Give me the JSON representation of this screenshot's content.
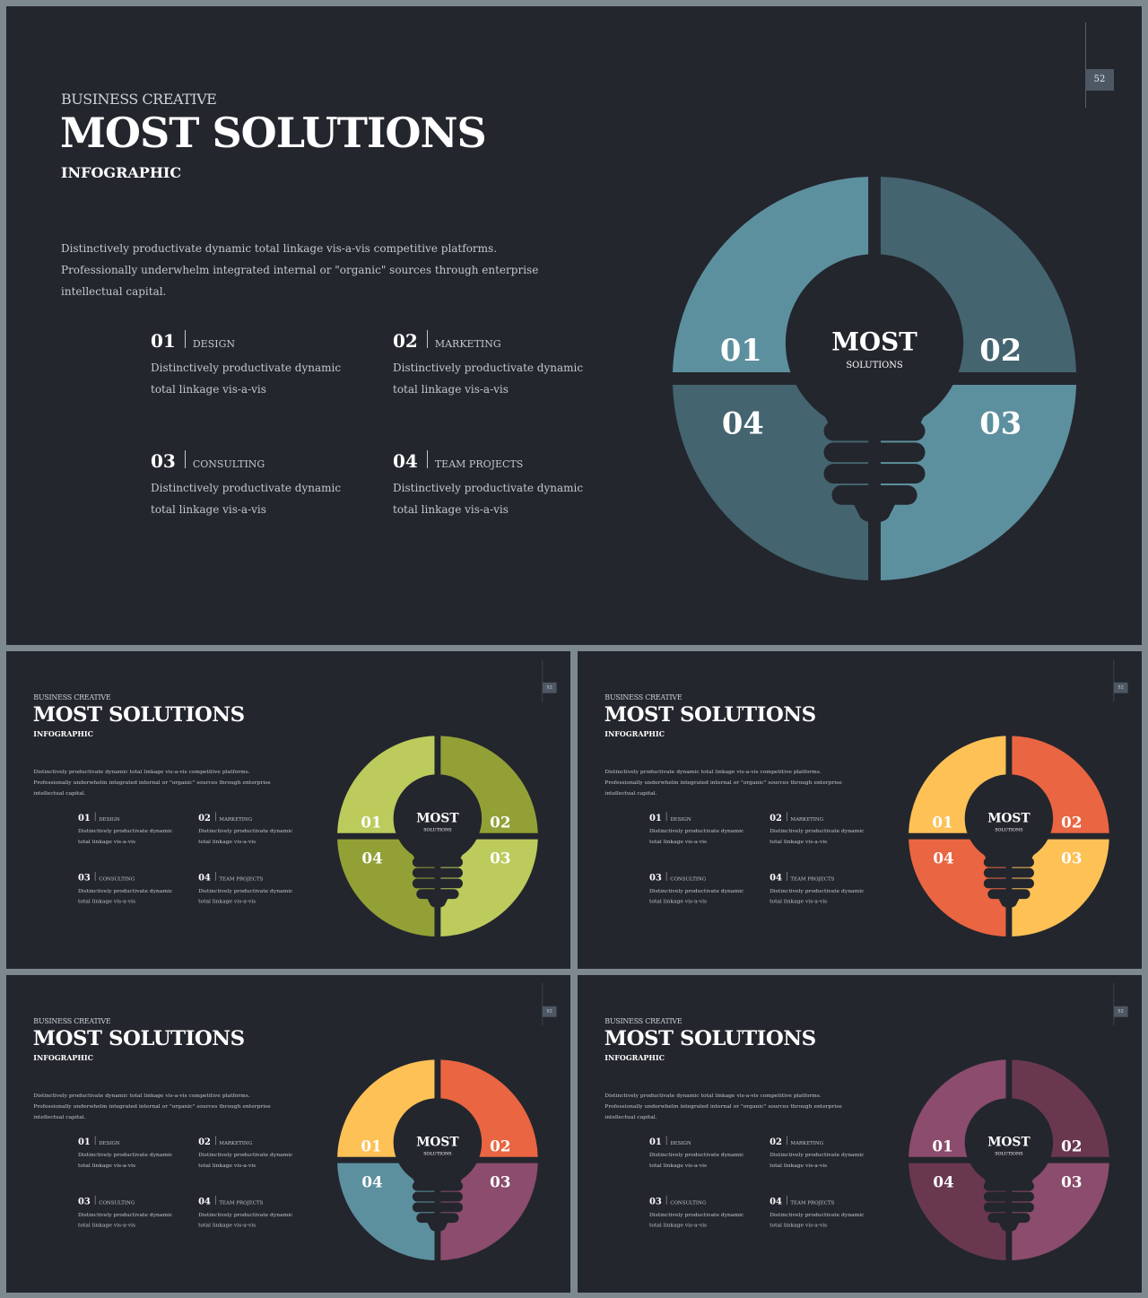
{
  "page_number": "52",
  "pre_title": "BUSINESS CREATIVE",
  "title": "MOST SOLUTIONS",
  "subtitle": "INFOGRAPHIC",
  "description": "Distinctively productivate dynamic total linkage vis-a-vis competitive platforms. Professionally underwhelm integrated internal or \"organic\" sources through enterprise intellectual capital.",
  "items": [
    {
      "num": "01",
      "label": "DESIGN",
      "text": "Distinctively productivate dynamic total linkage vis-a-vis"
    },
    {
      "num": "02",
      "label": "MARKETING",
      "text": "Distinctively productivate dynamic total linkage vis-a-vis"
    },
    {
      "num": "03",
      "label": "CONSULTING",
      "text": "Distinctively productivate dynamic total linkage vis-a-vis"
    },
    {
      "num": "04",
      "label": "TEAM PROJECTS",
      "text": "Distinctively productivate dynamic total linkage vis-a-vis"
    }
  ],
  "bulb": {
    "title": "MOST",
    "subtitle": "SOLUTIONS"
  },
  "icon": "lightbulb-icon",
  "background_color": "#23262d",
  "variants": [
    {
      "name": "teal",
      "colors": {
        "q1": "#5d909f",
        "q2": "#44646f",
        "q3": "#5d909f",
        "q4": "#44646f"
      }
    },
    {
      "name": "green",
      "colors": {
        "q1": "#bccb5c",
        "q2": "#93a036",
        "q3": "#bccb5c",
        "q4": "#93a036"
      }
    },
    {
      "name": "orange",
      "colors": {
        "q1": "#fdc156",
        "q2": "#ea6541",
        "q3": "#fdc156",
        "q4": "#ea6541"
      }
    },
    {
      "name": "mixed",
      "colors": {
        "q1": "#fdc156",
        "q2": "#ea6541",
        "q3": "#8b4c6d",
        "q4": "#5d909f"
      }
    },
    {
      "name": "purple",
      "colors": {
        "q1": "#8b4c6d",
        "q2": "#69384f",
        "q3": "#8b4c6d",
        "q4": "#69384f"
      }
    }
  ]
}
